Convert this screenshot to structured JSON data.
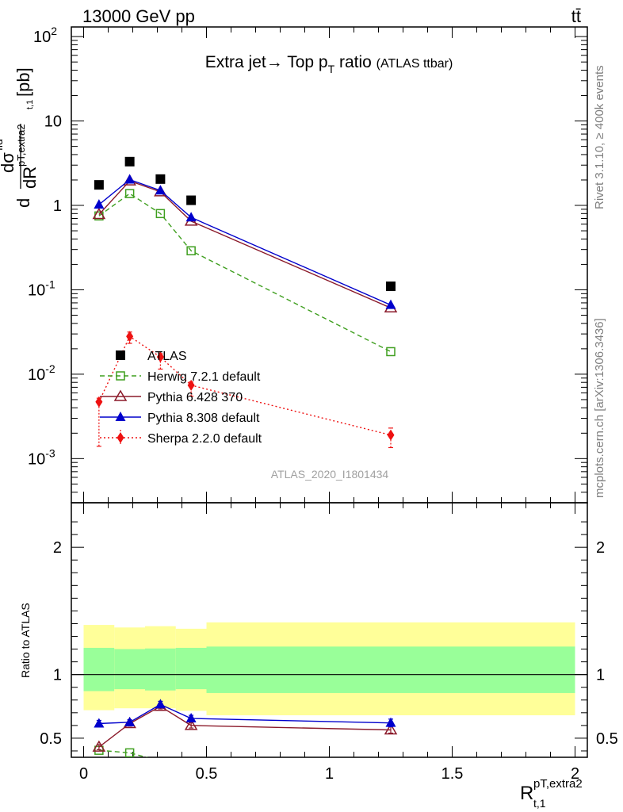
{
  "header": {
    "energy_label": "13000 GeV pp",
    "process_label": "tt̄"
  },
  "side": {
    "rivet_label": "Rivet 3.1.10, ≥ 400k events",
    "mcplots_label": "mcplots.cern.ch [arXiv:1306.3436]"
  },
  "chart_data": [
    {
      "type": "scatter",
      "panel": "main",
      "title": "Extra jet→ Top p_T ratio",
      "title_main": "Extra jet",
      "title_pt": "Top p",
      "title_pt_sub": "T",
      "title_ratio": "ratio",
      "subtitle": "(ATLAS ttbar)",
      "ylabel": "dσ^fid / dR p_T,extra2 t,1 [pb]",
      "ylabel_d": "d",
      "ylabel_sigma": "dσ",
      "ylabel_fid": "fid",
      "ylabel_sub1": "pT,extra2",
      "ylabel_sub2": "t,1",
      "ylabel_dR": "dR",
      "ylabel_unit": "[pb]",
      "yscale": "log",
      "ylim": [
        0.0003,
        130
      ],
      "xlim": [
        -0.05,
        2.05
      ],
      "yticks": [
        {
          "value": 0.001,
          "base": "10",
          "exp": "-3"
        },
        {
          "value": 0.01,
          "base": "10",
          "exp": "-2"
        },
        {
          "value": 0.1,
          "base": "10",
          "exp": "-1"
        },
        {
          "value": 1,
          "base": "1",
          "exp": ""
        },
        {
          "value": 10,
          "base": "10",
          "exp": ""
        },
        {
          "value": 100,
          "base": "10",
          "exp": "2"
        }
      ],
      "watermark": "ATLAS_2020_I1801434",
      "legend_position": "lower-left",
      "series": [
        {
          "name": "ATLAS",
          "color": "#000000",
          "marker": "square",
          "line": "none",
          "x": [
            0.0625,
            0.1875,
            0.3125,
            0.4375,
            1.25
          ],
          "y": [
            1.75,
            3.3,
            2.05,
            1.15,
            0.11
          ]
        },
        {
          "name": "Herwig 7.2.1 default",
          "color": "#3f9f1f",
          "marker": "open-square",
          "line": "dashed",
          "x": [
            0.0625,
            0.1875,
            0.3125,
            0.4375,
            1.25
          ],
          "y": [
            0.75,
            1.38,
            0.8,
            0.29,
            0.0185
          ]
        },
        {
          "name": "Pythia 6.428 370",
          "color": "#8b1a2a",
          "marker": "open-triangle",
          "line": "solid",
          "x": [
            0.0625,
            0.1875,
            0.3125,
            0.4375,
            1.25
          ],
          "y": [
            0.78,
            1.95,
            1.45,
            0.65,
            0.061
          ]
        },
        {
          "name": "Pythia 8.308 default",
          "color": "#0000cc",
          "marker": "triangle",
          "line": "solid",
          "x": [
            0.0625,
            0.1875,
            0.3125,
            0.4375,
            1.25
          ],
          "y": [
            1.02,
            2.02,
            1.5,
            0.72,
            0.066
          ]
        },
        {
          "name": "Sherpa 2.2.0 default",
          "color": "#ee1111",
          "marker": "diamond",
          "line": "dotted",
          "x": [
            0.0625,
            0.1875,
            0.3125,
            0.4375,
            1.25
          ],
          "y": [
            0.0047,
            0.028,
            0.016,
            0.0074,
            0.0019
          ],
          "err_lo": [
            0.0033,
            0.0048,
            0.0045,
            0.0019,
            0.00055
          ],
          "err_hi": [
            0.0005,
            0.0036,
            0.0015,
            0.0007,
            0.0004
          ]
        }
      ]
    },
    {
      "type": "scatter",
      "panel": "ratio",
      "ylabel": "Ratio to ATLAS",
      "xlabel": "R t,1 pT,extra2",
      "xlabel_R": "R",
      "xlabel_sup": "pT,extra2",
      "xlabel_sub": "t,1",
      "ylim": [
        0.35,
        2.35
      ],
      "xlim": [
        -0.05,
        2.05
      ],
      "xticks": [
        {
          "value": 0,
          "label": "0"
        },
        {
          "value": 0.5,
          "label": "0.5"
        },
        {
          "value": 1,
          "label": "1"
        },
        {
          "value": 1.5,
          "label": "1.5"
        },
        {
          "value": 2,
          "label": "2"
        }
      ],
      "yticks": [
        {
          "value": 0.5,
          "label": "0.5"
        },
        {
          "value": 1,
          "label": "1"
        },
        {
          "value": 2,
          "label": "2"
        }
      ],
      "bands": {
        "edges": [
          0,
          0.125,
          0.25,
          0.375,
          0.5,
          2.0
        ],
        "yellow_lo": [
          0.72,
          0.735,
          0.735,
          0.715,
          0.68
        ],
        "yellow_hi": [
          1.39,
          1.37,
          1.38,
          1.36,
          1.41
        ],
        "green_lo": [
          0.87,
          0.885,
          0.875,
          0.885,
          0.855
        ],
        "green_hi": [
          1.21,
          1.2,
          1.205,
          1.21,
          1.22
        ]
      },
      "series": [
        {
          "name": "Herwig 7.2.1 default",
          "color": "#3f9f1f",
          "marker": "open-square",
          "line": "dashed",
          "x": [
            0.0625,
            0.1875,
            0.3125
          ],
          "y": [
            0.405,
            0.385,
            0.32
          ]
        },
        {
          "name": "Pythia 6.428 370",
          "color": "#8b1a2a",
          "marker": "open-triangle",
          "line": "solid",
          "x": [
            0.0625,
            0.1875,
            0.3125,
            0.4375,
            1.25
          ],
          "y": [
            0.43,
            0.615,
            0.75,
            0.6,
            0.565
          ],
          "err": [
            0.02,
            0.02,
            0.02,
            0.02,
            0.025
          ]
        },
        {
          "name": "Pythia 8.308 default",
          "color": "#0000cc",
          "marker": "triangle",
          "line": "solid",
          "x": [
            0.0625,
            0.1875,
            0.3125,
            0.4375,
            1.25
          ],
          "y": [
            0.615,
            0.625,
            0.765,
            0.655,
            0.62
          ],
          "err": [
            0.025,
            0.02,
            0.025,
            0.025,
            0.03
          ]
        }
      ]
    }
  ]
}
